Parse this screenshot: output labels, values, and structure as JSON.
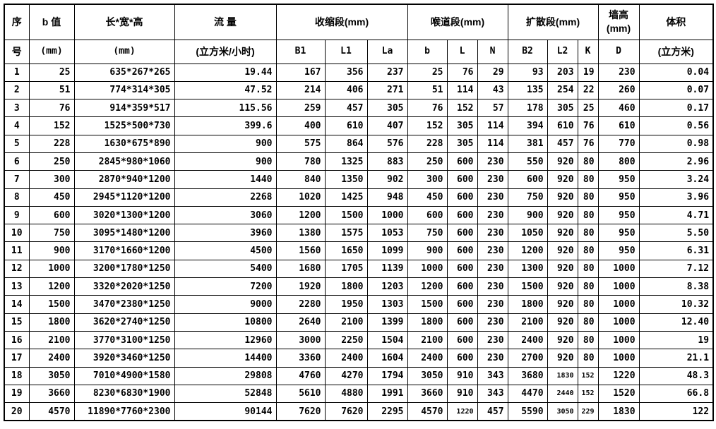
{
  "page": {
    "background": "#ffffff",
    "border_color": "#000000",
    "text_color": "#000000"
  },
  "table": {
    "header_row1": {
      "seq": "序",
      "b_value": "b 值",
      "dims": "长*宽*高",
      "flow": "流 量",
      "contraction": "收缩段(mm)",
      "throat": "喉道段(mm)",
      "diffusion": "扩散段(mm)",
      "wall_line1": "墙高",
      "wall_unit": "(mm)",
      "volume": "体积"
    },
    "header_row2": {
      "seq": "号",
      "b_unit": "(mm)",
      "dims_unit": "(mm)",
      "flow_unit": "(立方米/小时)",
      "B1": "B1",
      "L1": "L1",
      "La": "La",
      "b": "b",
      "L": "L",
      "N": "N",
      "B2": "B2",
      "L2": "L2",
      "K": "K",
      "D": "D",
      "volume_unit": "(立方米)"
    },
    "rows": [
      [
        "1",
        "25",
        "635*267*265",
        "19.44",
        "167",
        "356",
        "237",
        "25",
        "76",
        "29",
        "93",
        "203",
        "19",
        "230",
        "0.04"
      ],
      [
        "2",
        "51",
        "774*314*305",
        "47.52",
        "214",
        "406",
        "271",
        "51",
        "114",
        "43",
        "135",
        "254",
        "22",
        "260",
        "0.07"
      ],
      [
        "3",
        "76",
        "914*359*517",
        "115.56",
        "259",
        "457",
        "305",
        "76",
        "152",
        "57",
        "178",
        "305",
        "25",
        "460",
        "0.17"
      ],
      [
        "4",
        "152",
        "1525*500*730",
        "399.6",
        "400",
        "610",
        "407",
        "152",
        "305",
        "114",
        "394",
        "610",
        "76",
        "610",
        "0.56"
      ],
      [
        "5",
        "228",
        "1630*675*890",
        "900",
        "575",
        "864",
        "576",
        "228",
        "305",
        "114",
        "381",
        "457",
        "76",
        "770",
        "0.98"
      ],
      [
        "6",
        "250",
        "2845*980*1060",
        "900",
        "780",
        "1325",
        "883",
        "250",
        "600",
        "230",
        "550",
        "920",
        "80",
        "800",
        "2.96"
      ],
      [
        "7",
        "300",
        "2870*940*1200",
        "1440",
        "840",
        "1350",
        "902",
        "300",
        "600",
        "230",
        "600",
        "920",
        "80",
        "950",
        "3.24"
      ],
      [
        "8",
        "450",
        "2945*1120*1200",
        "2268",
        "1020",
        "1425",
        "948",
        "450",
        "600",
        "230",
        "750",
        "920",
        "80",
        "950",
        "3.96"
      ],
      [
        "9",
        "600",
        "3020*1300*1200",
        "3060",
        "1200",
        "1500",
        "1000",
        "600",
        "600",
        "230",
        "900",
        "920",
        "80",
        "950",
        "4.71"
      ],
      [
        "10",
        "750",
        "3095*1480*1200",
        "3960",
        "1380",
        "1575",
        "1053",
        "750",
        "600",
        "230",
        "1050",
        "920",
        "80",
        "950",
        "5.50"
      ],
      [
        "11",
        "900",
        "3170*1660*1200",
        "4500",
        "1560",
        "1650",
        "1099",
        "900",
        "600",
        "230",
        "1200",
        "920",
        "80",
        "950",
        "6.31"
      ],
      [
        "12",
        "1000",
        "3200*1780*1250",
        "5400",
        "1680",
        "1705",
        "1139",
        "1000",
        "600",
        "230",
        "1300",
        "920",
        "80",
        "1000",
        "7.12"
      ],
      [
        "13",
        "1200",
        "3320*2020*1250",
        "7200",
        "1920",
        "1800",
        "1203",
        "1200",
        "600",
        "230",
        "1500",
        "920",
        "80",
        "1000",
        "8.38"
      ],
      [
        "14",
        "1500",
        "3470*2380*1250",
        "9000",
        "2280",
        "1950",
        "1303",
        "1500",
        "600",
        "230",
        "1800",
        "920",
        "80",
        "1000",
        "10.32"
      ],
      [
        "15",
        "1800",
        "3620*2740*1250",
        "10800",
        "2640",
        "2100",
        "1399",
        "1800",
        "600",
        "230",
        "2100",
        "920",
        "80",
        "1000",
        "12.40"
      ],
      [
        "16",
        "2100",
        "3770*3100*1250",
        "12960",
        "3000",
        "2250",
        "1504",
        "2100",
        "600",
        "230",
        "2400",
        "920",
        "80",
        "1000",
        "19"
      ],
      [
        "17",
        "2400",
        "3920*3460*1250",
        "14400",
        "3360",
        "2400",
        "1604",
        "2400",
        "600",
        "230",
        "2700",
        "920",
        "80",
        "1000",
        "21.1"
      ],
      [
        "18",
        "3050",
        "7010*4900*1580",
        "29808",
        "4760",
        "4270",
        "1794",
        "3050",
        "910",
        "343",
        "3680",
        "1830",
        "152",
        "1220",
        "48.3"
      ],
      [
        "19",
        "3660",
        "8230*6830*1900",
        "52848",
        "5610",
        "4880",
        "1991",
        "3660",
        "910",
        "343",
        "4470",
        "2440",
        "152",
        "1520",
        "66.8"
      ],
      [
        "20",
        "4570",
        "11890*7760*2300",
        "90144",
        "7620",
        "7620",
        "2295",
        "4570",
        "1220",
        "457",
        "5590",
        "3050",
        "229",
        "1830",
        "122"
      ]
    ]
  }
}
